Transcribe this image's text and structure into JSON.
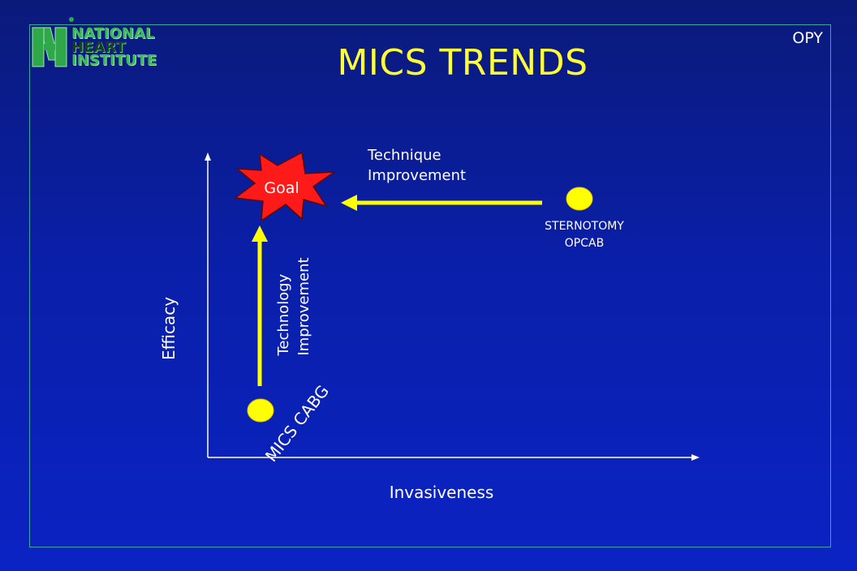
{
  "logo": {
    "line1": "NATIONAL",
    "line2": "HEART",
    "line3": "INSTITUTE"
  },
  "corner_code": "OPY",
  "title": "MICS TRENDS",
  "axes": {
    "x_label": "Invasiveness",
    "y_label": "Efficacy"
  },
  "nodes": {
    "goal": "Goal",
    "mics": "MICS CABG",
    "sternotomy_line1": "STERNOTOMY",
    "sternotomy_line2": "OPCAB"
  },
  "arrows": {
    "technique_line1": "Technique",
    "technique_line2": "Improvement",
    "technology_line1": "Technology",
    "technology_line2": "Improvement"
  },
  "colors": {
    "title": "#ffff33",
    "arrow": "#ffff00",
    "goal_fill": "#ff1a1a",
    "frame": "#3aa6a0",
    "logo_green": "#3db85a"
  },
  "icons": {
    "logo": "nhi-logo-icon",
    "goal": "starburst-icon"
  }
}
